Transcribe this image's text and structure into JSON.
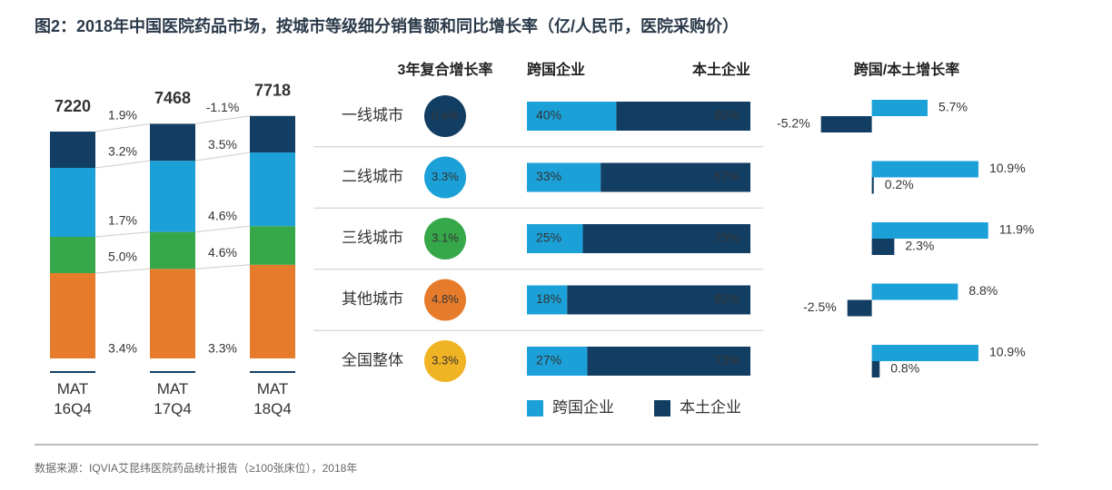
{
  "title": "图2：2018年中国医院药品市场，按城市等级细分销售额和同比增长率（亿/人民币，医院采购价）",
  "source": "数据来源：IQVIA艾昆纬医院药品统计报告（≥100张床位），2018年",
  "chart_data": [
    {
      "type": "stacked_bar",
      "categories": [
        "MAT 16Q4",
        "MAT 17Q4",
        "MAT 18Q4"
      ],
      "ylim": [
        0,
        8000
      ],
      "series": [
        {
          "color": "#e67c2b",
          "values": [
            2715,
            2851,
            2981
          ],
          "growth": [
            5.0,
            4.6
          ],
          "growth_labels": [
            "5.0%",
            "4.6%"
          ]
        },
        {
          "color": "#37a84a",
          "values": [
            1155,
            1175,
            1229
          ],
          "growth": [
            1.7,
            4.6
          ],
          "growth_labels": [
            "1.7%",
            "4.6%"
          ]
        },
        {
          "color": "#1ba1d8",
          "values": [
            2195,
            2265,
            2344
          ],
          "growth": [
            3.2,
            3.5
          ],
          "growth_labels": [
            "3.2%",
            "3.5%"
          ]
        },
        {
          "color": "#133e63",
          "values": [
            1155,
            1177,
            1164
          ],
          "growth": [
            1.9,
            -1.1
          ],
          "growth_labels": [
            "1.9%",
            "-1.1%"
          ]
        }
      ],
      "totals": [
        7220,
        7468,
        7718
      ],
      "total_growth": [
        3.4,
        3.3
      ],
      "total_growth_labels": [
        "3.4%",
        "3.3%"
      ]
    },
    {
      "type": "share_table",
      "categories": [
        "一线城市",
        "二线城市",
        "三线城市",
        "其他城市",
        "全国整体"
      ],
      "cagr_title": "3年复合增长率",
      "cagr": [
        0.4,
        3.3,
        3.1,
        4.8,
        3.3
      ],
      "cagr_labels": [
        "0.4%",
        "3.3%",
        "3.1%",
        "4.8%",
        "3.3%"
      ],
      "cagr_colors": [
        "#133e63",
        "#1ba1d8",
        "#37a84a",
        "#e67c2b",
        "#f0b323"
      ],
      "series": [
        {
          "name": "跨国企业",
          "color": "#1ba1d8",
          "values": [
            40,
            33,
            25,
            18,
            27
          ],
          "value_labels": [
            "40%",
            "33%",
            "25%",
            "18%",
            "27%"
          ]
        },
        {
          "name": "本土企业",
          "color": "#133e63",
          "values": [
            60,
            67,
            75,
            82,
            73
          ],
          "value_labels": [
            "60%",
            "67%",
            "75%",
            "82%",
            "73%"
          ]
        }
      ]
    },
    {
      "type": "hbar",
      "title": "跨国/本土增长率",
      "xlim": [
        -10,
        17.5
      ],
      "series": [
        {
          "color": "#1ba1d8",
          "values": [
            5.7,
            10.9,
            11.9,
            8.8,
            10.9
          ],
          "value_labels": [
            "5.7%",
            "10.9%",
            "11.9%",
            "8.8%",
            "10.9%"
          ]
        },
        {
          "color": "#133e63",
          "values": [
            -5.2,
            0.2,
            2.3,
            -2.5,
            0.8
          ],
          "value_labels": [
            "-5.2%",
            "0.2%",
            "2.3%",
            "-2.5%",
            "0.8%"
          ]
        }
      ]
    }
  ]
}
